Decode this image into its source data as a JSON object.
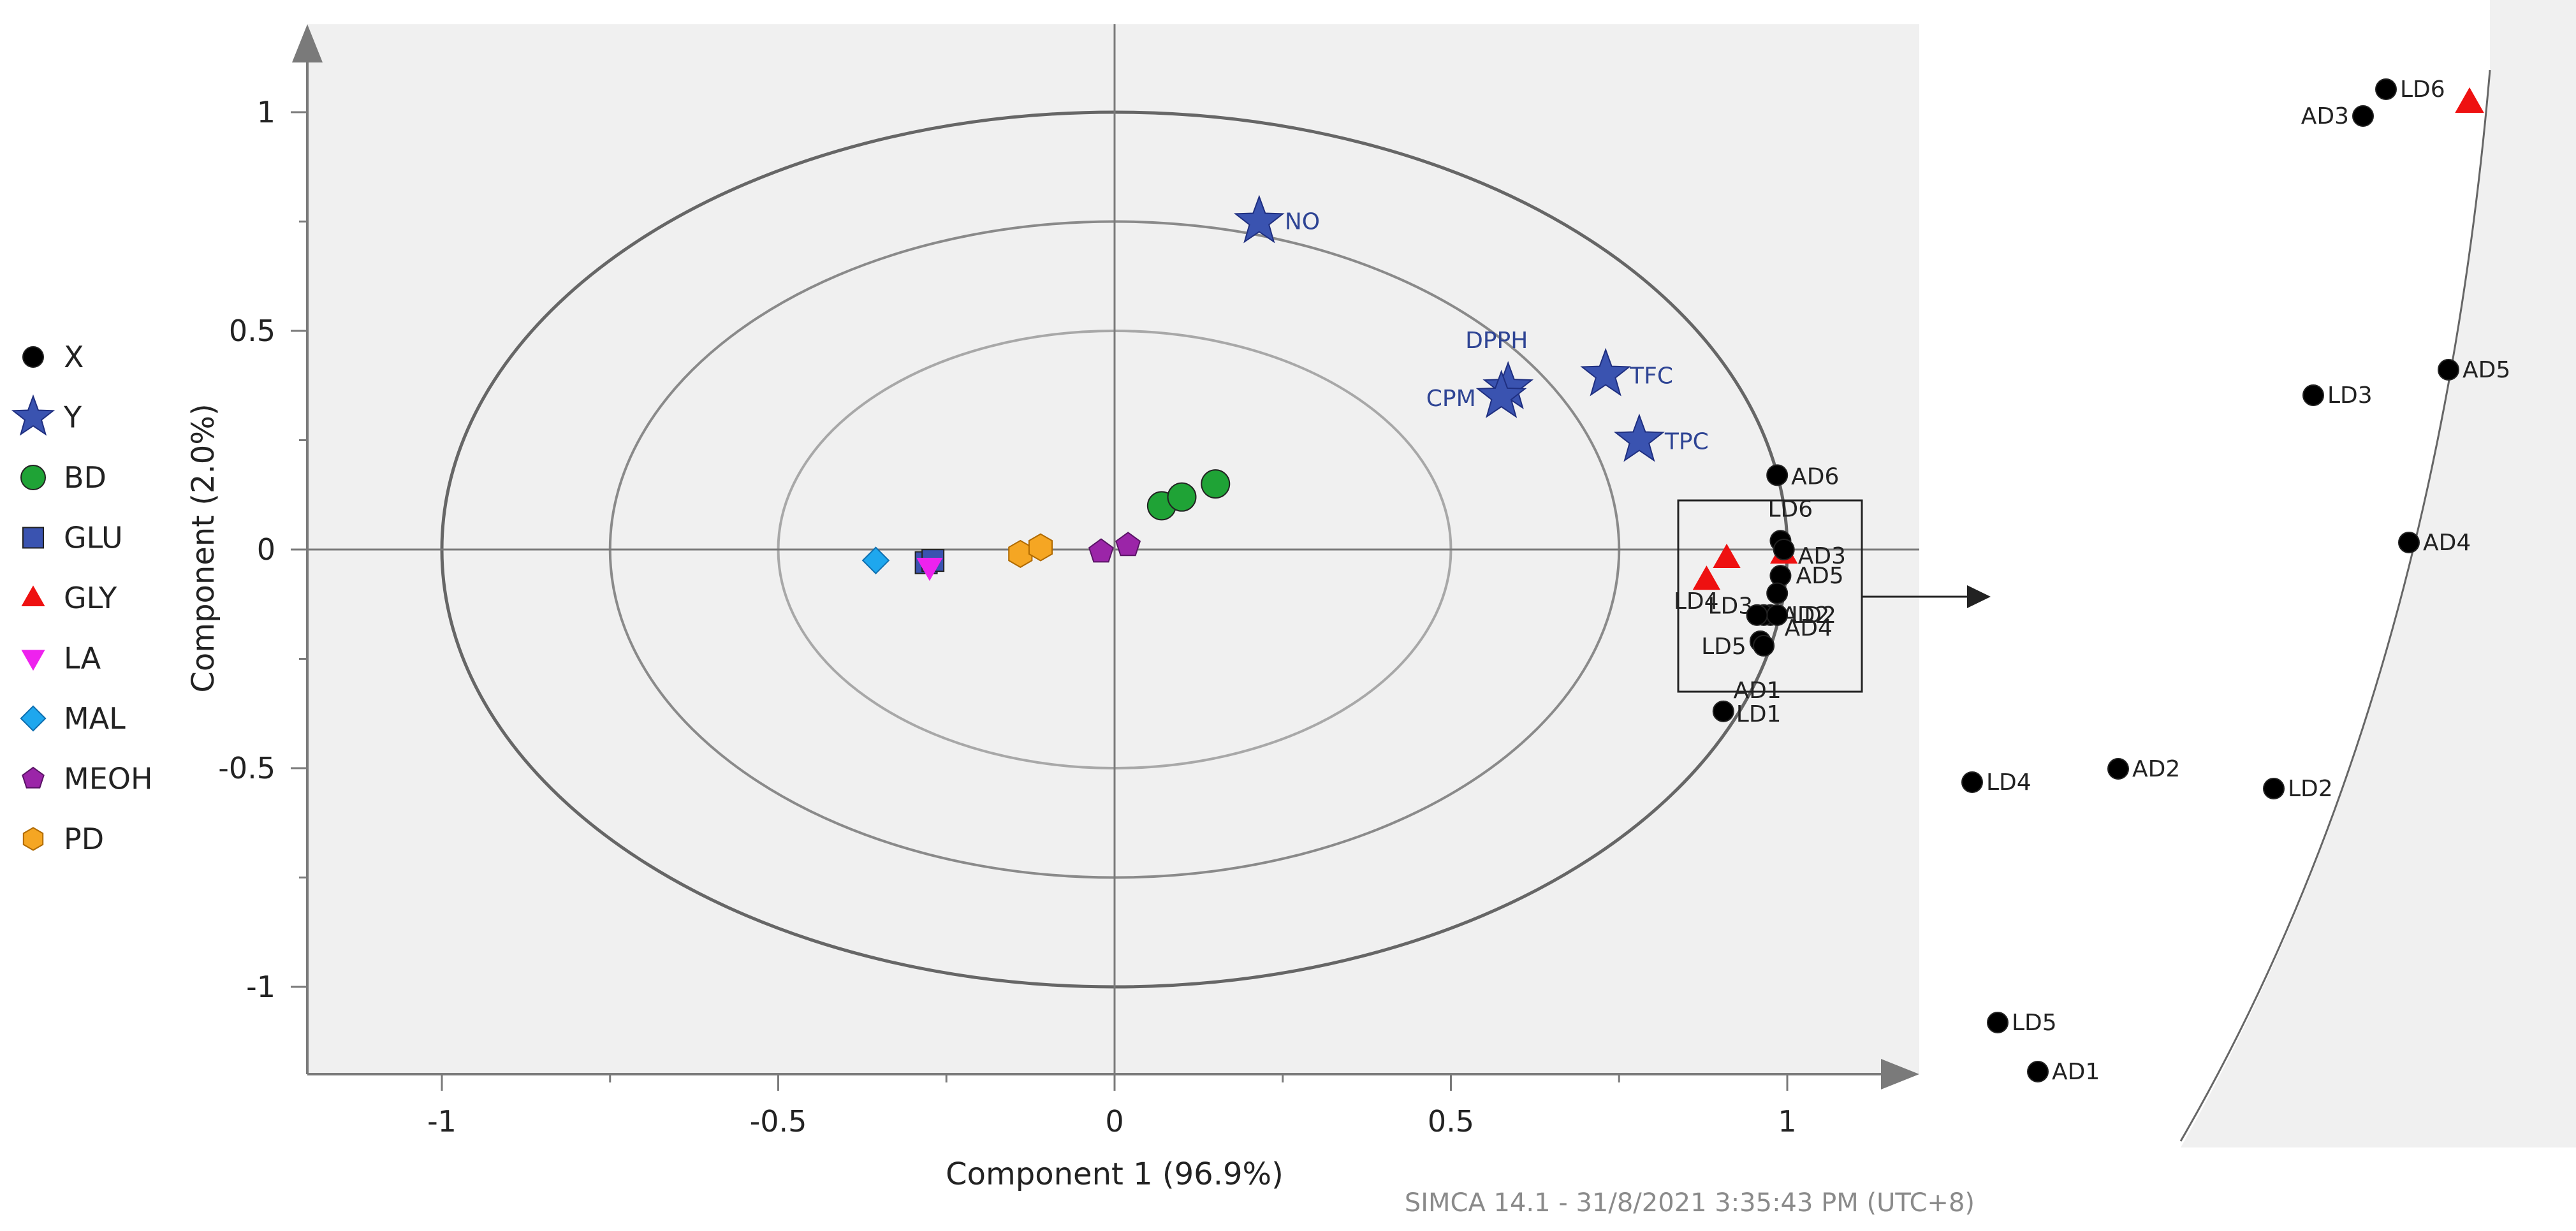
{
  "chart_data": {
    "type": "scatter",
    "title": "",
    "xlabel": "Component 1 (96.9%)",
    "ylabel": "Component (2.0%)",
    "xlim": [
      -1.2,
      1.2
    ],
    "ylim": [
      -1.2,
      1.2
    ],
    "xticks": [
      -1,
      -0.5,
      0,
      0.5,
      1
    ],
    "yticks": [
      1,
      0.5,
      0,
      -0.5,
      -1
    ],
    "xtick_labels": [
      "-1",
      "-0.5",
      "0",
      "0.5",
      "1"
    ],
    "ytick_labels": [
      "1",
      "0.5",
      "0",
      "-0.5",
      "-1"
    ],
    "correlation_circles": [
      1.0,
      0.75,
      0.5
    ],
    "legend": [
      {
        "name": "X",
        "marker": "circle",
        "color": "#000000"
      },
      {
        "name": "Y",
        "marker": "star",
        "color": "#3a53b0"
      },
      {
        "name": "BD",
        "marker": "circle",
        "color": "#1fa336"
      },
      {
        "name": "GLU",
        "marker": "square",
        "color": "#3a53b0"
      },
      {
        "name": "GLY",
        "marker": "triangle-up",
        "color": "#ee1111"
      },
      {
        "name": "LA",
        "marker": "triangle-down",
        "color": "#ee22ee"
      },
      {
        "name": "MAL",
        "marker": "diamond",
        "color": "#1ea7ee"
      },
      {
        "name": "MEOH",
        "marker": "pentagon",
        "color": "#9b25a8"
      },
      {
        "name": "PD",
        "marker": "hexagon",
        "color": "#f5a623"
      }
    ],
    "series": [
      {
        "name": "X",
        "points": [
          {
            "label": "AD6",
            "x": 0.985,
            "y": 0.17
          },
          {
            "label": "LD6",
            "x": 0.99,
            "y": 0.02
          },
          {
            "label": "AD3",
            "x": 0.995,
            "y": 0.0
          },
          {
            "label": "AD5",
            "x": 0.99,
            "y": -0.06
          },
          {
            "label": "LD3",
            "x": 0.985,
            "y": -0.1
          },
          {
            "label": "AD4",
            "x": 0.975,
            "y": -0.15
          },
          {
            "label": "AD2",
            "x": 0.965,
            "y": -0.15
          },
          {
            "label": "LD2",
            "x": 0.985,
            "y": -0.15
          },
          {
            "label": "LD4",
            "x": 0.955,
            "y": -0.15
          },
          {
            "label": "LD5",
            "x": 0.96,
            "y": -0.21
          },
          {
            "label": "AD1",
            "x": 0.965,
            "y": -0.22
          },
          {
            "label": "LD1",
            "x": 0.905,
            "y": -0.37
          }
        ]
      },
      {
        "name": "Y",
        "points": [
          {
            "label": "NO",
            "x": 0.215,
            "y": 0.75
          },
          {
            "label": "DPPH",
            "x": 0.585,
            "y": 0.37
          },
          {
            "label": "CPM",
            "x": 0.575,
            "y": 0.35
          },
          {
            "label": "TFC",
            "x": 0.73,
            "y": 0.4
          },
          {
            "label": "TPC",
            "x": 0.78,
            "y": 0.25
          }
        ]
      },
      {
        "name": "BD",
        "points": [
          {
            "x": 0.07,
            "y": 0.1
          },
          {
            "x": 0.1,
            "y": 0.12
          },
          {
            "x": 0.15,
            "y": 0.15
          }
        ]
      },
      {
        "name": "GLU",
        "points": [
          {
            "x": -0.28,
            "y": -0.03
          },
          {
            "x": -0.27,
            "y": -0.025
          }
        ]
      },
      {
        "name": "GLY",
        "points": [
          {
            "x": 0.995,
            "y": -0.01
          },
          {
            "x": 0.91,
            "y": -0.02
          },
          {
            "x": 0.88,
            "y": -0.07
          }
        ]
      },
      {
        "name": "LA",
        "points": [
          {
            "x": -0.275,
            "y": -0.04
          }
        ]
      },
      {
        "name": "MAL",
        "points": [
          {
            "x": -0.355,
            "y": -0.025
          }
        ]
      },
      {
        "name": "MEOH",
        "points": [
          {
            "x": -0.02,
            "y": -0.005
          },
          {
            "x": 0.02,
            "y": 0.01
          }
        ]
      },
      {
        "name": "PD",
        "points": [
          {
            "x": -0.14,
            "y": -0.01
          },
          {
            "x": -0.11,
            "y": 0.005
          }
        ]
      }
    ],
    "zoom_panel": {
      "description": "Enlarged view of the boxed region",
      "points": [
        {
          "label": "LD6",
          "marker": "circle"
        },
        {
          "label": "AD3",
          "marker": "circle"
        },
        {
          "label": "GLY",
          "marker": "triangle-up"
        },
        {
          "label": "AD5",
          "marker": "circle"
        },
        {
          "label": "LD3",
          "marker": "circle"
        },
        {
          "label": "AD4",
          "marker": "circle"
        },
        {
          "label": "LD4",
          "marker": "circle"
        },
        {
          "label": "AD2",
          "marker": "circle"
        },
        {
          "label": "LD2",
          "marker": "circle"
        },
        {
          "label": "LD5",
          "marker": "circle"
        },
        {
          "label": "AD1",
          "marker": "circle"
        }
      ]
    }
  },
  "footer": "SIMCA 14.1 - 31/8/2021 3:35:43 PM (UTC+8)",
  "colors": {
    "plot_background": "#f0f0f0",
    "axis": "#7a7a7a",
    "outer_circle": "#666666",
    "mid_circle": "#8a8a8a",
    "inner_circle": "#a8a8a8"
  }
}
